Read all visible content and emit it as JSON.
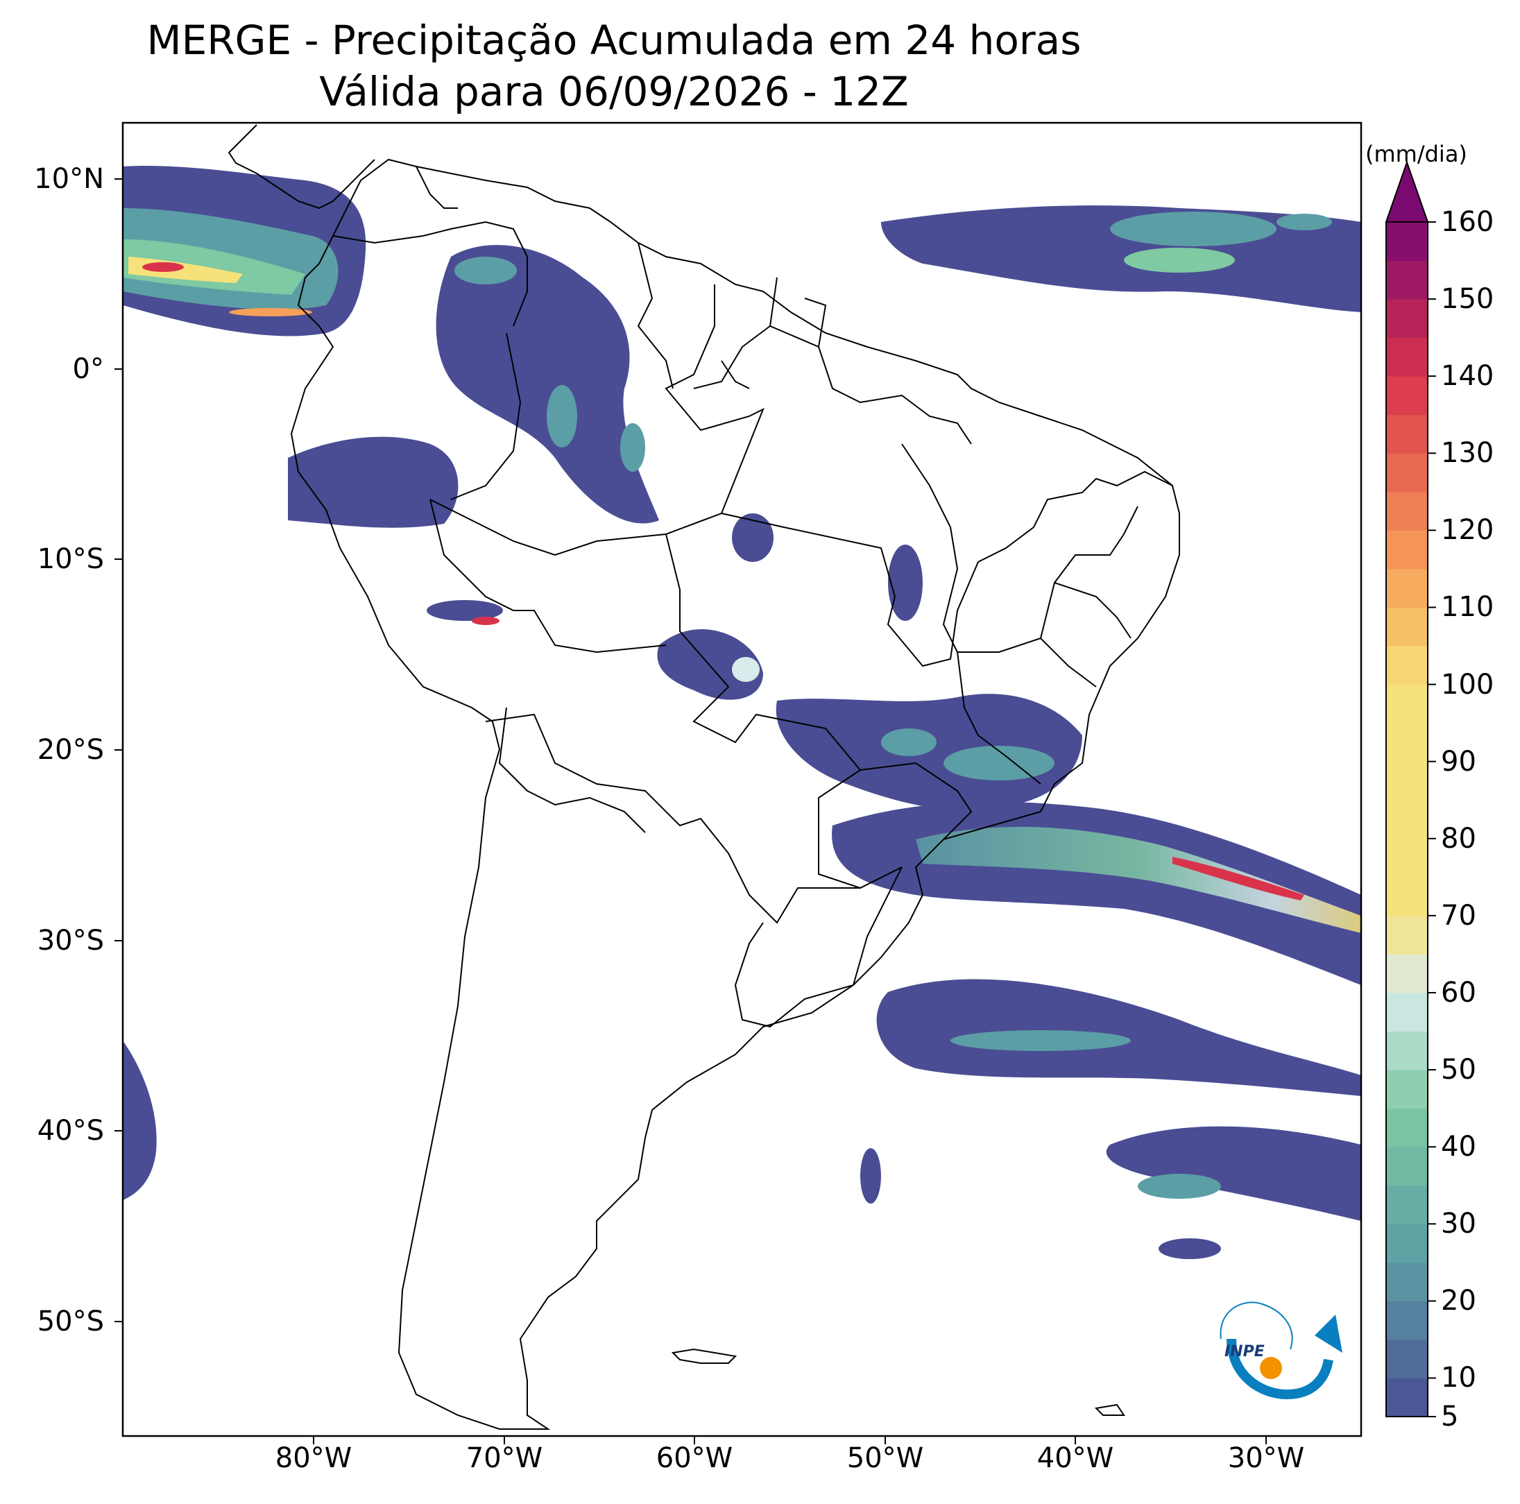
{
  "title": {
    "line1": "MERGE - Precipitação Acumulada em 24 horas",
    "line2": "Válida para 06/09/2026 - 12Z"
  },
  "map": {
    "lat_ticks": [
      "10°N",
      "0°",
      "10°S",
      "20°S",
      "30°S",
      "40°S",
      "50°S"
    ],
    "lon_ticks": [
      "80°W",
      "70°W",
      "60°W",
      "50°W",
      "40°W",
      "30°W"
    ],
    "extent": {
      "lon": [
        -90,
        -25
      ],
      "lat": [
        -56,
        13
      ]
    }
  },
  "colorbar": {
    "units": "(mm/dia)",
    "ticks": [
      "5",
      "10",
      "20",
      "30",
      "40",
      "50",
      "60",
      "70",
      "80",
      "90",
      "100",
      "110",
      "120",
      "130",
      "140",
      "150",
      "160"
    ],
    "extend": "max"
  },
  "logo": {
    "text": "INPE"
  },
  "colors": {
    "low": "#4a4d94",
    "mid": "#5c9ea5",
    "green": "#7fc9a3",
    "pale": "#d9ecec",
    "yellow": "#f6e27a",
    "orange": "#f7a058",
    "red": "#d9334c",
    "top": "#7b0a70"
  }
}
